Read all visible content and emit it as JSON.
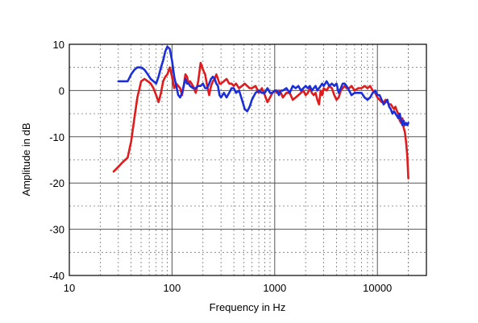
{
  "chart_data": {
    "type": "line",
    "title": "",
    "xlabel": "Frequency in Hz",
    "ylabel": "Amplitude in dB",
    "x_scale": "log",
    "xlim": [
      10,
      30000
    ],
    "ylim": [
      -40,
      10
    ],
    "grid": true,
    "legend": "none",
    "x_ticks": [
      10,
      100,
      1000,
      10000
    ],
    "x_tick_labels": [
      "10",
      "100",
      "1000",
      "10000"
    ],
    "y_ticks": [
      10,
      0,
      -10,
      -20,
      -30,
      -40
    ],
    "y_tick_labels": [
      "10",
      "0",
      "-10",
      "-20",
      "-30",
      "-40"
    ],
    "series": [
      {
        "color": "#e01b1b",
        "x": [
          27,
          30,
          33,
          37,
          40,
          43,
          46,
          50,
          54,
          58,
          62,
          66,
          70,
          74,
          78,
          82,
          86,
          90,
          95,
          100,
          105,
          110,
          115,
          120,
          125,
          130,
          135,
          140,
          145,
          150,
          160,
          170,
          180,
          190,
          200,
          210,
          220,
          230,
          240,
          250,
          260,
          270,
          280,
          290,
          300,
          320,
          340,
          360,
          380,
          400,
          420,
          450,
          480,
          510,
          540,
          570,
          600,
          650,
          700,
          750,
          800,
          850,
          900,
          950,
          1000,
          1050,
          1100,
          1150,
          1200,
          1300,
          1400,
          1500,
          1600,
          1700,
          1800,
          1900,
          2000,
          2100,
          2200,
          2300,
          2400,
          2500,
          2600,
          2700,
          2800,
          2900,
          3000,
          3200,
          3400,
          3600,
          3800,
          4000,
          4200,
          4400,
          4600,
          4800,
          5000,
          5300,
          5600,
          6000,
          6500,
          7000,
          7500,
          8000,
          8500,
          9000,
          9500,
          10000,
          10500,
          11000,
          11500,
          12000,
          12500,
          13000,
          13500,
          14000,
          14500,
          15000,
          15500,
          16000,
          16500,
          17000,
          17500,
          18000,
          18500,
          19000,
          19500,
          20000
        ],
        "values": [
          -17.5,
          -16.5,
          -15.5,
          -14.5,
          -11.0,
          -6.0,
          -1.5,
          2.0,
          2.5,
          2.0,
          1.5,
          0.5,
          -1.0,
          -2.5,
          -0.5,
          2.0,
          3.0,
          3.5,
          5.0,
          3.0,
          0.5,
          1.5,
          1.0,
          0.5,
          -1.0,
          1.0,
          3.5,
          3.0,
          1.5,
          2.0,
          1.0,
          -0.5,
          2.0,
          6.0,
          4.5,
          3.5,
          1.0,
          -1.0,
          1.0,
          2.0,
          2.5,
          3.5,
          2.5,
          1.5,
          1.5,
          2.0,
          2.5,
          1.5,
          1.5,
          1.0,
          1.5,
          0.5,
          1.0,
          1.5,
          1.0,
          0.5,
          0.5,
          1.0,
          -0.5,
          0.5,
          -1.0,
          -2.5,
          -1.5,
          -0.5,
          0.0,
          -0.5,
          0.0,
          -0.5,
          -1.5,
          -0.5,
          -0.5,
          -2.0,
          -1.5,
          -1.0,
          -0.5,
          0.0,
          -1.0,
          -0.5,
          0.5,
          -0.5,
          -1.0,
          -0.5,
          -2.0,
          -3.0,
          0.0,
          -1.0,
          0.5,
          0.0,
          1.0,
          0.5,
          -1.0,
          -2.0,
          -1.5,
          0.0,
          0.5,
          1.0,
          0.5,
          0.5,
          1.0,
          0.0,
          0.5,
          0.5,
          1.0,
          0.5,
          1.0,
          0.0,
          -0.5,
          -1.5,
          -2.0,
          -2.5,
          -2.5,
          -2.0,
          -2.5,
          -3.0,
          -3.0,
          -3.5,
          -4.0,
          -3.5,
          -4.5,
          -5.0,
          -6.5,
          -7.0,
          -6.0,
          -8.0,
          -9.0,
          -11.0,
          -14.0,
          -19.0
        ]
      },
      {
        "color": "#1b2fd8",
        "x": [
          30,
          33,
          37,
          40,
          43,
          46,
          50,
          54,
          58,
          62,
          66,
          70,
          74,
          78,
          82,
          86,
          90,
          95,
          100,
          105,
          110,
          115,
          120,
          125,
          130,
          135,
          140,
          145,
          150,
          160,
          170,
          180,
          190,
          200,
          210,
          220,
          230,
          240,
          250,
          260,
          270,
          280,
          290,
          300,
          320,
          340,
          360,
          380,
          400,
          420,
          450,
          480,
          510,
          540,
          570,
          600,
          650,
          700,
          750,
          800,
          850,
          900,
          950,
          1000,
          1050,
          1100,
          1150,
          1200,
          1300,
          1400,
          1500,
          1600,
          1700,
          1800,
          1900,
          2000,
          2100,
          2200,
          2300,
          2400,
          2500,
          2600,
          2700,
          2800,
          2900,
          3000,
          3200,
          3400,
          3600,
          3800,
          4000,
          4200,
          4400,
          4600,
          4800,
          5000,
          5300,
          5600,
          6000,
          6500,
          7000,
          7500,
          8000,
          8500,
          9000,
          9500,
          10000,
          10500,
          11000,
          11500,
          12000,
          12500,
          13000,
          13500,
          14000,
          14500,
          15000,
          15500,
          16000,
          16500,
          17000,
          17500,
          18000,
          18500,
          19000,
          19500,
          20000
        ],
        "values": [
          2.0,
          2.0,
          2.0,
          3.5,
          4.5,
          5.0,
          5.0,
          4.5,
          3.5,
          2.5,
          2.0,
          1.5,
          3.0,
          5.0,
          6.5,
          8.5,
          9.5,
          9.0,
          6.5,
          3.0,
          1.0,
          -1.0,
          -1.5,
          -0.5,
          1.0,
          2.5,
          1.5,
          1.5,
          1.0,
          0.5,
          0.5,
          1.0,
          1.0,
          1.5,
          0.5,
          0.5,
          1.5,
          2.5,
          3.0,
          2.5,
          1.5,
          1.0,
          -1.0,
          -1.5,
          -0.5,
          -1.5,
          -0.5,
          0.5,
          0.5,
          -0.5,
          0.0,
          -2.0,
          -4.0,
          -4.5,
          -3.5,
          -2.0,
          -0.5,
          0.0,
          -0.5,
          -0.5,
          0.5,
          -0.5,
          -0.5,
          0.0,
          0.0,
          -1.0,
          0.0,
          0.0,
          0.5,
          -0.5,
          1.0,
          0.5,
          1.0,
          0.0,
          0.5,
          1.0,
          0.5,
          1.0,
          0.0,
          0.5,
          1.0,
          0.0,
          0.5,
          1.0,
          1.5,
          1.0,
          2.0,
          1.0,
          1.5,
          1.0,
          1.5,
          -0.5,
          0.5,
          1.5,
          1.5,
          1.0,
          0.0,
          -1.0,
          -0.5,
          -0.5,
          -0.5,
          -1.5,
          -2.0,
          -1.5,
          -0.5,
          0.0,
          -1.0,
          -1.0,
          -2.0,
          -3.0,
          -2.5,
          -2.0,
          -3.5,
          -4.0,
          -5.0,
          -4.5,
          -5.0,
          -5.5,
          -6.0,
          -5.0,
          -6.5,
          -7.5,
          -6.5,
          -7.5,
          -7.0,
          -7.5,
          -7.0
        ]
      }
    ]
  }
}
